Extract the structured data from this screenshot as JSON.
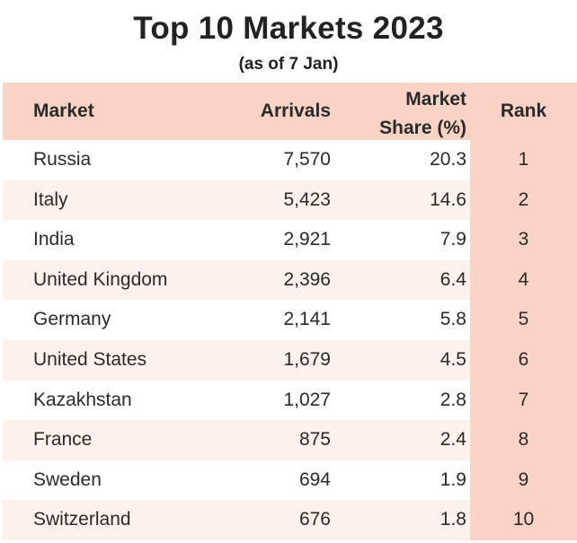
{
  "chart_data": {
    "type": "table",
    "title": "Top 10 Markets 2023",
    "subtitle": "(as of 7 Jan)",
    "columns": [
      "Market",
      "Arrivals",
      "Market Share (%)",
      "Rank"
    ],
    "column_labels": {
      "market": "Market",
      "arrivals": "Arrivals",
      "share_line1": "Market",
      "share_line2": "Share (%)",
      "rank": "Rank"
    },
    "rows": [
      {
        "market": "Russia",
        "arrivals": "7,570",
        "share": "20.3",
        "rank": "1"
      },
      {
        "market": "Italy",
        "arrivals": "5,423",
        "share": "14.6",
        "rank": "2"
      },
      {
        "market": "India",
        "arrivals": "2,921",
        "share": "7.9",
        "rank": "3"
      },
      {
        "market": "United Kingdom",
        "arrivals": "2,396",
        "share": "6.4",
        "rank": "4"
      },
      {
        "market": "Germany",
        "arrivals": "2,141",
        "share": "5.8",
        "rank": "5"
      },
      {
        "market": "United States",
        "arrivals": "1,679",
        "share": "4.5",
        "rank": "6"
      },
      {
        "market": "Kazakhstan",
        "arrivals": "1,027",
        "share": "2.8",
        "rank": "7"
      },
      {
        "market": "France",
        "arrivals": "875",
        "share": "2.4",
        "rank": "8"
      },
      {
        "market": "Sweden",
        "arrivals": "694",
        "share": "1.9",
        "rank": "9"
      },
      {
        "market": "Switzerland",
        "arrivals": "676",
        "share": "1.8",
        "rank": "10"
      }
    ],
    "colors": {
      "header_bg": "#fbd3c5",
      "rank_column_bg": "#fbd3c5",
      "alt_row_bg": "#fdf1ec"
    }
  }
}
